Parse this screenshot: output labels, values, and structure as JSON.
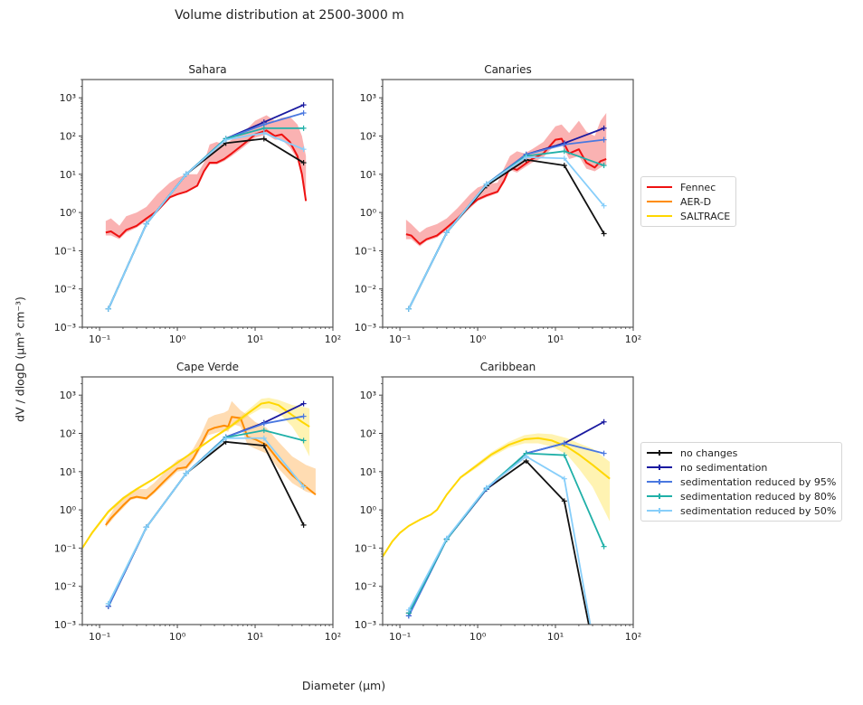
{
  "figure": {
    "suptitle": "Volume distribution at 2500-3000 m",
    "ylabel": "dV / dlogD (µm³ cm⁻³)",
    "xlabel": "Diameter (µm)"
  },
  "legend_observations": {
    "items": [
      {
        "label": "Fennec",
        "color": "#ee1111"
      },
      {
        "label": "AER-D",
        "color": "#ff8c00"
      },
      {
        "label": "SALTRACE",
        "color": "#ffd700"
      }
    ]
  },
  "legend_model": {
    "items": [
      {
        "label": "no changes",
        "color": "#111111"
      },
      {
        "label": "no sedimentation",
        "color": "#1a1aa0"
      },
      {
        "label": "sedimentation reduced by 95%",
        "color": "#4a78e0"
      },
      {
        "label": "sedimentation reduced by 80%",
        "color": "#20b0a8"
      },
      {
        "label": "sedimentation reduced by 50%",
        "color": "#87cefa"
      }
    ]
  },
  "chart_data": [
    {
      "type": "line",
      "title": "Sahara",
      "xscale": "log",
      "yscale": "log",
      "xlim": [
        0.06,
        100
      ],
      "ylim": [
        0.001,
        3000
      ],
      "xticks": [
        "10⁻¹",
        "10⁰",
        "10¹",
        "10²"
      ],
      "yticks": [
        "10⁻³",
        "10⁻²",
        "10⁻¹",
        "10⁰",
        "10¹",
        "10²",
        "10³"
      ],
      "model_x": [
        0.13,
        0.4,
        1.3,
        4.2,
        13,
        42
      ],
      "series": [
        {
          "name": "no changes",
          "color": "#111111",
          "values": [
            0.003,
            0.5,
            10,
            65,
            85,
            20
          ]
        },
        {
          "name": "no sedimentation",
          "color": "#1a1aa0",
          "values": [
            0.003,
            0.5,
            10,
            85,
            230,
            650
          ]
        },
        {
          "name": "sedimentation reduced by 95%",
          "color": "#4a78e0",
          "values": [
            0.003,
            0.5,
            10,
            85,
            200,
            400
          ]
        },
        {
          "name": "sedimentation reduced by 80%",
          "color": "#20b0a8",
          "values": [
            0.003,
            0.5,
            10,
            85,
            160,
            160
          ]
        },
        {
          "name": "sedimentation reduced by 50%",
          "color": "#87cefa",
          "values": [
            0.003,
            0.5,
            10,
            80,
            120,
            45
          ]
        }
      ],
      "observations": [
        {
          "name": "Fennec",
          "color": "#ee1111",
          "x": [
            0.12,
            0.14,
            0.18,
            0.22,
            0.3,
            0.4,
            0.55,
            0.8,
            1.0,
            1.3,
            1.8,
            2.2,
            2.6,
            3.2,
            4.0,
            5.0,
            7.0,
            10,
            14,
            18,
            22,
            28,
            35,
            40,
            45
          ],
          "y": [
            0.3,
            0.32,
            0.23,
            0.35,
            0.45,
            0.7,
            1.1,
            2.5,
            3.0,
            3.5,
            5.0,
            12,
            20,
            20,
            25,
            35,
            60,
            110,
            140,
            100,
            110,
            70,
            30,
            10,
            2
          ],
          "lower": [
            0.25,
            0.25,
            0.2,
            0.3,
            0.4,
            0.6,
            1.0,
            2.3,
            2.8,
            3.3,
            4.8,
            11,
            18,
            18,
            22,
            30,
            50,
            90,
            110,
            80,
            80,
            50,
            25,
            8,
            2
          ],
          "upper": [
            0.6,
            0.7,
            0.45,
            0.8,
            1.0,
            1.4,
            3.0,
            6.0,
            8.0,
            10,
            10,
            20,
            60,
            70,
            60,
            80,
            120,
            250,
            350,
            250,
            300,
            320,
            200,
            100,
            30
          ]
        }
      ]
    },
    {
      "type": "line",
      "title": "Canaries",
      "xscale": "log",
      "yscale": "log",
      "xlim": [
        0.06,
        100
      ],
      "ylim": [
        0.001,
        3000
      ],
      "xticks": [
        "10⁻¹",
        "10⁰",
        "10¹",
        "10²"
      ],
      "yticks": [
        "10⁻³",
        "10⁻²",
        "10⁻¹",
        "10⁰",
        "10¹",
        "10²",
        "10³"
      ],
      "model_x": [
        0.13,
        0.4,
        1.3,
        4.2,
        13,
        42
      ],
      "series": [
        {
          "name": "no changes",
          "color": "#111111",
          "values": [
            0.003,
            0.3,
            5,
            24,
            17,
            0.28
          ]
        },
        {
          "name": "no sedimentation",
          "color": "#1a1aa0",
          "values": [
            0.003,
            0.3,
            5.5,
            33,
            65,
            160
          ]
        },
        {
          "name": "sedimentation reduced by 95%",
          "color": "#4a78e0",
          "values": [
            0.003,
            0.3,
            5.5,
            33,
            60,
            80
          ]
        },
        {
          "name": "sedimentation reduced by 80%",
          "color": "#20b0a8",
          "values": [
            0.003,
            0.3,
            5.5,
            30,
            40,
            17
          ]
        },
        {
          "name": "sedimentation reduced by 50%",
          "color": "#87cefa",
          "values": [
            0.003,
            0.3,
            5.5,
            28,
            26,
            1.5
          ]
        }
      ],
      "observations": [
        {
          "name": "Fennec",
          "color": "#ee1111",
          "x": [
            0.12,
            0.14,
            0.18,
            0.22,
            0.3,
            0.4,
            0.55,
            0.8,
            1.0,
            1.3,
            1.8,
            2.2,
            2.6,
            3.2,
            4.0,
            5.0,
            7.0,
            10,
            12,
            15,
            20,
            25,
            32,
            38,
            45
          ],
          "y": [
            0.27,
            0.25,
            0.15,
            0.2,
            0.25,
            0.4,
            0.7,
            1.5,
            2.2,
            2.8,
            3.5,
            7,
            15,
            13,
            18,
            25,
            35,
            80,
            85,
            35,
            45,
            20,
            15,
            22,
            25
          ],
          "lower": [
            0.2,
            0.2,
            0.13,
            0.18,
            0.22,
            0.35,
            0.6,
            1.3,
            2.0,
            2.5,
            3.2,
            6,
            13,
            11,
            15,
            20,
            28,
            60,
            60,
            25,
            30,
            14,
            12,
            15,
            18
          ],
          "upper": [
            0.65,
            0.5,
            0.3,
            0.4,
            0.5,
            0.7,
            1.3,
            3.0,
            4.5,
            5.5,
            6.0,
            15,
            30,
            40,
            35,
            45,
            70,
            180,
            200,
            120,
            250,
            130,
            100,
            250,
            400
          ]
        }
      ]
    },
    {
      "type": "line",
      "title": "Cape Verde",
      "xscale": "log",
      "yscale": "log",
      "xlim": [
        0.06,
        100
      ],
      "ylim": [
        0.001,
        3000
      ],
      "xticks": [
        "10⁻¹",
        "10⁰",
        "10¹",
        "10²"
      ],
      "yticks": [
        "10⁻³",
        "10⁻²",
        "10⁻¹",
        "10⁰",
        "10¹",
        "10²",
        "10³"
      ],
      "model_x": [
        0.13,
        0.4,
        1.3,
        4.2,
        13,
        42
      ],
      "series": [
        {
          "name": "no changes",
          "color": "#111111",
          "values": [
            0.003,
            0.35,
            9,
            60,
            48,
            0.4
          ]
        },
        {
          "name": "no sedimentation",
          "color": "#1a1aa0",
          "values": [
            0.003,
            0.35,
            9,
            80,
            190,
            600
          ]
        },
        {
          "name": "sedimentation reduced by 95%",
          "color": "#4a78e0",
          "values": [
            0.003,
            0.35,
            9,
            80,
            180,
            280
          ]
        },
        {
          "name": "sedimentation reduced by 80%",
          "color": "#20b0a8",
          "values": [
            0.0035,
            0.35,
            9,
            78,
            120,
            65
          ]
        },
        {
          "name": "sedimentation reduced by 50%",
          "color": "#87cefa",
          "values": [
            0.0035,
            0.35,
            9,
            75,
            75,
            4
          ]
        }
      ],
      "observations": [
        {
          "name": "AER-D",
          "color": "#ff8c00",
          "x": [
            0.12,
            0.14,
            0.16,
            0.2,
            0.25,
            0.3,
            0.4,
            0.5,
            0.7,
            1.0,
            1.3,
            1.6,
            2.0,
            2.5,
            3.0,
            4.0,
            4.5,
            5.0,
            6.5,
            8.0,
            10,
            14,
            20,
            30,
            45,
            60
          ],
          "y": [
            0.4,
            0.6,
            0.8,
            1.3,
            2.0,
            2.2,
            2.0,
            3.0,
            6.0,
            12,
            13,
            22,
            50,
            120,
            140,
            160,
            150,
            270,
            250,
            80,
            70,
            50,
            20,
            8,
            4,
            2.5
          ],
          "lower": [
            0.35,
            0.5,
            0.7,
            1.1,
            1.8,
            2.0,
            1.8,
            2.6,
            5.0,
            10,
            11,
            18,
            40,
            90,
            100,
            120,
            110,
            180,
            150,
            50,
            40,
            30,
            12,
            5,
            3,
            2.5
          ],
          "upper": [
            0.5,
            0.8,
            1.3,
            2.0,
            3.0,
            3.5,
            3.5,
            5.0,
            10,
            20,
            25,
            40,
            90,
            250,
            300,
            350,
            400,
            700,
            400,
            300,
            200,
            140,
            60,
            25,
            15,
            12
          ]
        },
        {
          "name": "SALTRACE",
          "color": "#ffd700",
          "x": [
            0.06,
            0.08,
            0.1,
            0.13,
            0.2,
            0.3,
            0.5,
            1.0,
            2.0,
            3.0,
            5.0,
            8.0,
            12,
            15,
            20,
            30,
            40,
            50
          ],
          "y": [
            0.1,
            0.25,
            0.45,
            0.9,
            2.0,
            3.5,
            6.5,
            17,
            45,
            80,
            160,
            330,
            600,
            650,
            550,
            300,
            200,
            150
          ],
          "lower": [
            0.1,
            0.22,
            0.4,
            0.8,
            1.8,
            3.2,
            6.0,
            16,
            42,
            75,
            140,
            280,
            450,
            450,
            350,
            150,
            60,
            25
          ],
          "upper": [
            0.1,
            0.28,
            0.5,
            1.0,
            2.2,
            3.8,
            7.0,
            18,
            48,
            85,
            180,
            400,
            800,
            850,
            750,
            550,
            500,
            450
          ]
        }
      ]
    },
    {
      "type": "line",
      "title": "Caribbean",
      "xscale": "log",
      "yscale": "log",
      "xlim": [
        0.06,
        100
      ],
      "ylim": [
        0.001,
        3000
      ],
      "xticks": [
        "10⁻¹",
        "10⁰",
        "10¹",
        "10²"
      ],
      "yticks": [
        "10⁻³",
        "10⁻²",
        "10⁻¹",
        "10⁰",
        "10¹",
        "10²",
        "10³"
      ],
      "model_x": [
        0.13,
        0.4,
        1.3,
        4.2,
        13,
        42
      ],
      "series": [
        {
          "name": "no changes",
          "color": "#111111",
          "values": [
            0.002,
            0.17,
            3.5,
            19,
            1.7,
            1e-05
          ]
        },
        {
          "name": "no sedimentation",
          "color": "#1a1aa0",
          "values": [
            0.0017,
            0.17,
            3.5,
            30,
            55,
            200
          ]
        },
        {
          "name": "sedimentation reduced by 95%",
          "color": "#4a78e0",
          "values": [
            0.0017,
            0.17,
            3.6,
            30,
            55,
            30
          ]
        },
        {
          "name": "sedimentation reduced by 80%",
          "color": "#20b0a8",
          "values": [
            0.002,
            0.17,
            3.7,
            30,
            27,
            0.11
          ]
        },
        {
          "name": "sedimentation reduced by 50%",
          "color": "#87cefa",
          "values": [
            0.0024,
            0.18,
            3.8,
            25,
            6.5,
            1e-05
          ]
        }
      ],
      "observations": [
        {
          "name": "SALTRACE",
          "color": "#ffd700",
          "x": [
            0.06,
            0.08,
            0.1,
            0.13,
            0.18,
            0.25,
            0.3,
            0.4,
            0.6,
            1.0,
            1.5,
            2.5,
            4.0,
            6.0,
            9.0,
            14,
            20,
            30,
            50
          ],
          "y": [
            0.06,
            0.15,
            0.25,
            0.38,
            0.55,
            0.75,
            1.0,
            2.5,
            7.0,
            15,
            28,
            50,
            70,
            75,
            65,
            45,
            28,
            15,
            6.5
          ],
          "lower": [
            0.06,
            0.15,
            0.25,
            0.38,
            0.55,
            0.75,
            1.0,
            2.4,
            6.5,
            13,
            24,
            42,
            55,
            55,
            45,
            28,
            12,
            4,
            0.5
          ],
          "upper": [
            0.06,
            0.15,
            0.25,
            0.38,
            0.55,
            0.75,
            1.0,
            2.6,
            7.5,
            17,
            32,
            60,
            90,
            100,
            95,
            75,
            55,
            40,
            18
          ]
        }
      ]
    }
  ]
}
